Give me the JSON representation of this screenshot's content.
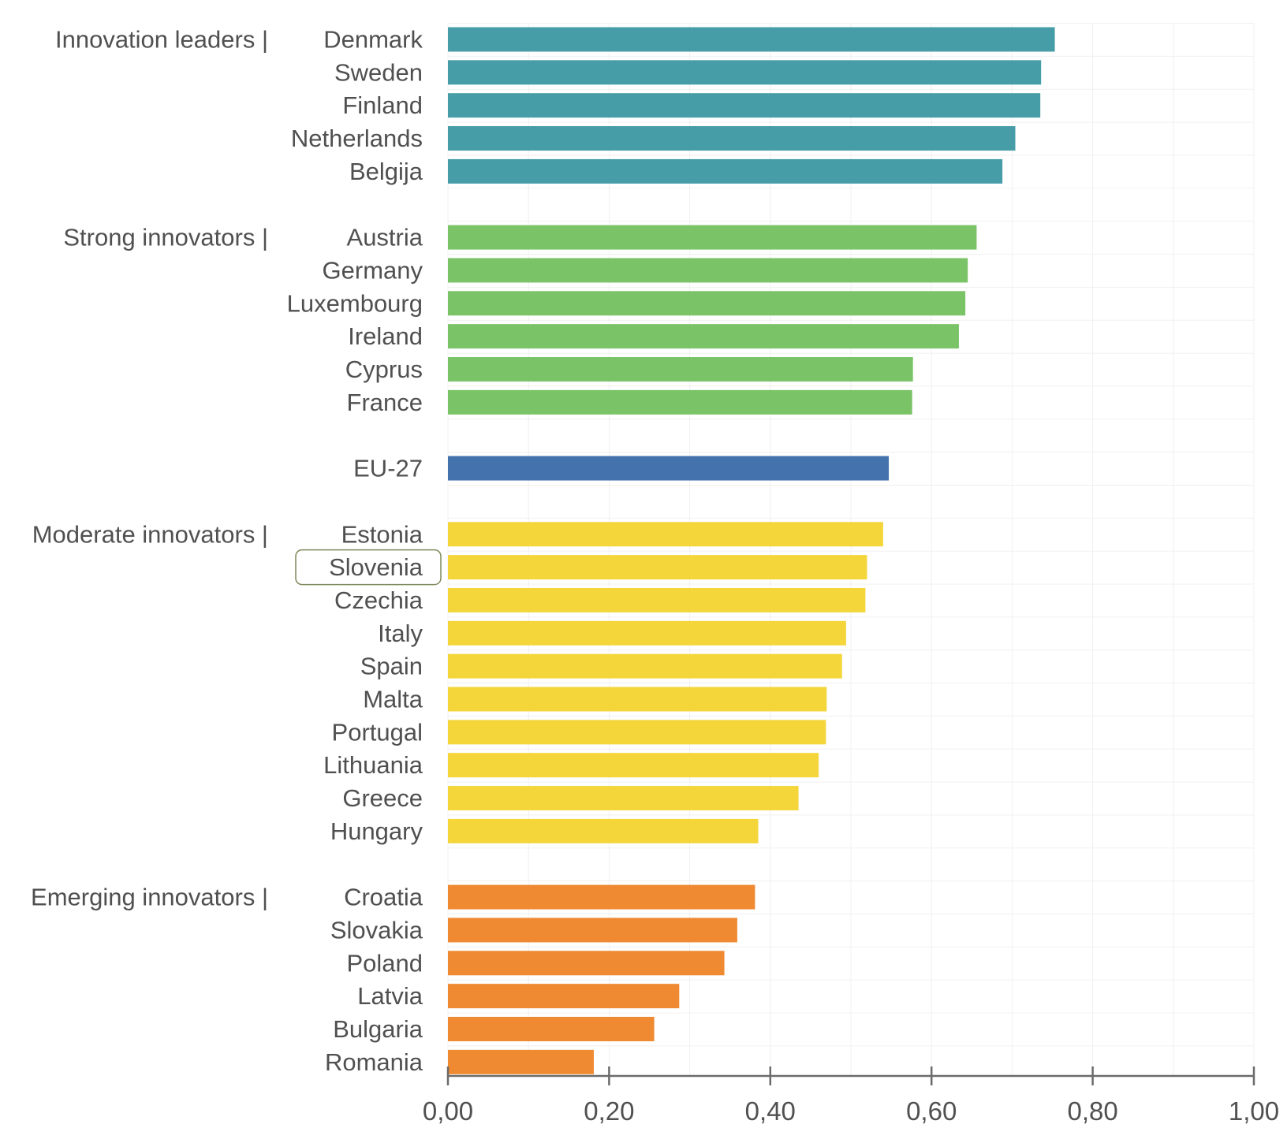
{
  "chart_data": {
    "type": "bar",
    "orientation": "horizontal",
    "xlim": [
      0,
      1
    ],
    "x_ticks": [
      "0,00",
      "0,20",
      "0,40",
      "0,60",
      "0,80",
      "1,00"
    ],
    "grid": true,
    "groups": [
      {
        "label": "Innovation leaders |",
        "color": "#469CA7",
        "row": 0
      },
      {
        "label": "Strong innovators   |",
        "color": "#7AC366",
        "row": 6
      },
      {
        "label": "Moderate innovators |",
        "color": "#F4D63B",
        "row": 15
      },
      {
        "label": "Emerging innovators |",
        "color": "#EF8A32",
        "row": 26
      }
    ],
    "bars": [
      {
        "category": "Denmark",
        "value": 0.753,
        "color": "#469CA7",
        "row": 0
      },
      {
        "category": "Sweden",
        "value": 0.736,
        "color": "#469CA7",
        "row": 1
      },
      {
        "category": "Finland",
        "value": 0.735,
        "color": "#469CA7",
        "row": 2
      },
      {
        "category": "Netherlands",
        "value": 0.704,
        "color": "#469CA7",
        "row": 3
      },
      {
        "category": "Belgija",
        "value": 0.688,
        "color": "#469CA7",
        "row": 4
      },
      {
        "category": "Austria",
        "value": 0.656,
        "color": "#7AC366",
        "row": 6
      },
      {
        "category": "Germany",
        "value": 0.645,
        "color": "#7AC366",
        "row": 7
      },
      {
        "category": "Luxembourg",
        "value": 0.642,
        "color": "#7AC366",
        "row": 8
      },
      {
        "category": "Ireland",
        "value": 0.634,
        "color": "#7AC366",
        "row": 9
      },
      {
        "category": "Cyprus",
        "value": 0.577,
        "color": "#7AC366",
        "row": 10
      },
      {
        "category": "France",
        "value": 0.576,
        "color": "#7AC366",
        "row": 11
      },
      {
        "category": "EU-27",
        "value": 0.547,
        "color": "#4372AD",
        "row": 13
      },
      {
        "category": "Estonia",
        "value": 0.54,
        "color": "#F4D63B",
        "row": 15
      },
      {
        "category": "Slovenia",
        "value": 0.52,
        "color": "#F4D63B",
        "row": 16,
        "highlight": true
      },
      {
        "category": "Czechia",
        "value": 0.518,
        "color": "#F4D63B",
        "row": 17
      },
      {
        "category": "Italy",
        "value": 0.494,
        "color": "#F4D63B",
        "row": 18
      },
      {
        "category": "Spain",
        "value": 0.489,
        "color": "#F4D63B",
        "row": 19
      },
      {
        "category": "Malta",
        "value": 0.47,
        "color": "#F4D63B",
        "row": 20
      },
      {
        "category": "Portugal",
        "value": 0.469,
        "color": "#F4D63B",
        "row": 21
      },
      {
        "category": "Lithuania",
        "value": 0.46,
        "color": "#F4D63B",
        "row": 22
      },
      {
        "category": "Greece",
        "value": 0.435,
        "color": "#F4D63B",
        "row": 23
      },
      {
        "category": "Hungary",
        "value": 0.385,
        "color": "#F4D63B",
        "row": 24
      },
      {
        "category": "Croatia",
        "value": 0.381,
        "color": "#EF8A32",
        "row": 26
      },
      {
        "category": "Slovakia",
        "value": 0.359,
        "color": "#EF8A32",
        "row": 27
      },
      {
        "category": "Poland",
        "value": 0.343,
        "color": "#EF8A32",
        "row": 28
      },
      {
        "category": "Latvia",
        "value": 0.287,
        "color": "#EF8A32",
        "row": 29
      },
      {
        "category": "Bulgaria",
        "value": 0.256,
        "color": "#EF8A32",
        "row": 30
      },
      {
        "category": "Romania",
        "value": 0.181,
        "color": "#EF8A32",
        "row": 31
      }
    ]
  }
}
